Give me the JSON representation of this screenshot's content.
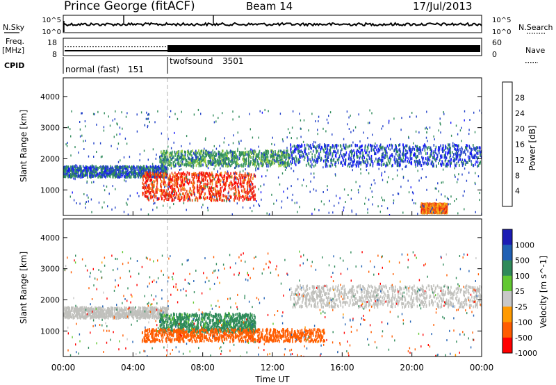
{
  "header": {
    "station": "Prince George (fitACF)",
    "beam": "Beam 14",
    "date": "17/Jul/2013"
  },
  "colors": {
    "power_scale": [
      "#1515ff",
      "#2040c8",
      "#2f8a5a",
      "#3f9e66",
      "#9bd13f",
      "#f6c21a",
      "#f7921a",
      "#f04c12",
      "#e81a10",
      "#ff0000"
    ],
    "velocity_scale": [
      "#ff0000",
      "#ff5c00",
      "#ff9a00",
      "#c8c8c8",
      "#62c832",
      "#2f8a5a",
      "#2060b4",
      "#1c1cb4"
    ],
    "ground_scatter": "#c0c0bc"
  },
  "chart_data": [
    {
      "panel": "nsky_nsearch",
      "type": "line",
      "left_label": "N.Sky",
      "right_label": "N.Search",
      "left_ticks": [
        "10^5",
        "10^0"
      ],
      "right_ticks": [
        "10^5",
        "10^0"
      ]
    },
    {
      "panel": "freq_nave",
      "type": "line",
      "left_label": "Freq.",
      "left_unit": "[MHz]",
      "right_label": "Nave",
      "left_ticks": [
        "18",
        "8"
      ],
      "right_ticks": [
        "60",
        "0"
      ]
    },
    {
      "panel": "cpid",
      "type": "table",
      "label": "CPID",
      "segments": [
        {
          "name": "normal (fast)",
          "id": "151",
          "start_hour": 0,
          "end_hour": 6
        },
        {
          "name": "twofsound",
          "id": "3501",
          "start_hour": 6,
          "end_hour": 24
        }
      ]
    },
    {
      "panel": "power",
      "type": "heatmap",
      "ylabel": "Slant Range [km]",
      "ylim": [
        180,
        4600
      ],
      "yticks": [
        1000,
        2000,
        3000,
        4000
      ],
      "xlim": [
        0,
        24
      ],
      "colorbar": {
        "label": "Power [dB]",
        "range": [
          0,
          32
        ],
        "ticks": [
          "28",
          "24",
          "20",
          "16",
          "12",
          "8",
          "4"
        ]
      },
      "regions": [
        {
          "x": [
            0,
            6
          ],
          "y": [
            1450,
            1800
          ],
          "value": 6
        },
        {
          "x": [
            4.5,
            11
          ],
          "y": [
            700,
            1600
          ],
          "value": 26
        },
        {
          "x": [
            5.5,
            13
          ],
          "y": [
            1800,
            2300
          ],
          "value": 10
        },
        {
          "x": [
            13,
            24
          ],
          "y": [
            1800,
            2500
          ],
          "value": 5
        },
        {
          "x": [
            20.5,
            22
          ],
          "y": [
            300,
            600
          ],
          "value": 22
        }
      ]
    },
    {
      "panel": "velocity",
      "type": "heatmap",
      "ylabel": "Slant Range [km]",
      "xlabel": "Time UT",
      "ylim": [
        180,
        4600
      ],
      "yticks": [
        1000,
        2000,
        3000,
        4000
      ],
      "xlim": [
        0,
        24
      ],
      "xticks": [
        "00:00",
        "04:00",
        "08:00",
        "12:00",
        "16:00",
        "20:00",
        "00:00"
      ],
      "colorbar": {
        "label": "Velocity [m s^-1]",
        "ticks": [
          "1000",
          "500",
          "100",
          "25",
          "-25",
          "-100",
          "-500",
          "-1000"
        ]
      },
      "regions": [
        {
          "x": [
            0,
            6
          ],
          "y": [
            1450,
            1800
          ],
          "value": 0
        },
        {
          "x": [
            5.5,
            11
          ],
          "y": [
            1000,
            1600
          ],
          "value": 150
        },
        {
          "x": [
            4.5,
            15
          ],
          "y": [
            700,
            1100
          ],
          "value": -200
        },
        {
          "x": [
            13,
            24
          ],
          "y": [
            1800,
            2500
          ],
          "value": 0
        }
      ]
    }
  ]
}
